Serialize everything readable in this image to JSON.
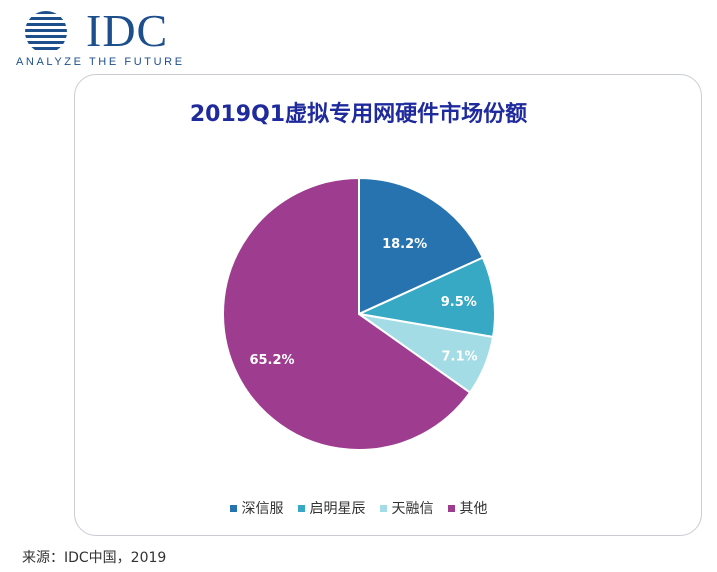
{
  "logo": {
    "text": "IDC",
    "tagline": "ANALYZE THE FUTURE"
  },
  "colors": {
    "brand": "#1d4f8c",
    "title": "#1f2a9c"
  },
  "chart_data": {
    "type": "pie",
    "title": "2019Q1虚拟专用网硬件市场份额",
    "categories": [
      "深信服",
      "启明星辰",
      "天融信",
      "其他"
    ],
    "values": [
      18.2,
      9.5,
      7.1,
      65.2
    ],
    "labels": [
      "18.2%",
      "9.5%",
      "7.1%",
      "65.2%"
    ],
    "colors": [
      "#2673b0",
      "#38a9c4",
      "#a3dce5",
      "#9e3c8f"
    ],
    "legend_position": "bottom"
  },
  "source": "来源：IDC中国，2019"
}
